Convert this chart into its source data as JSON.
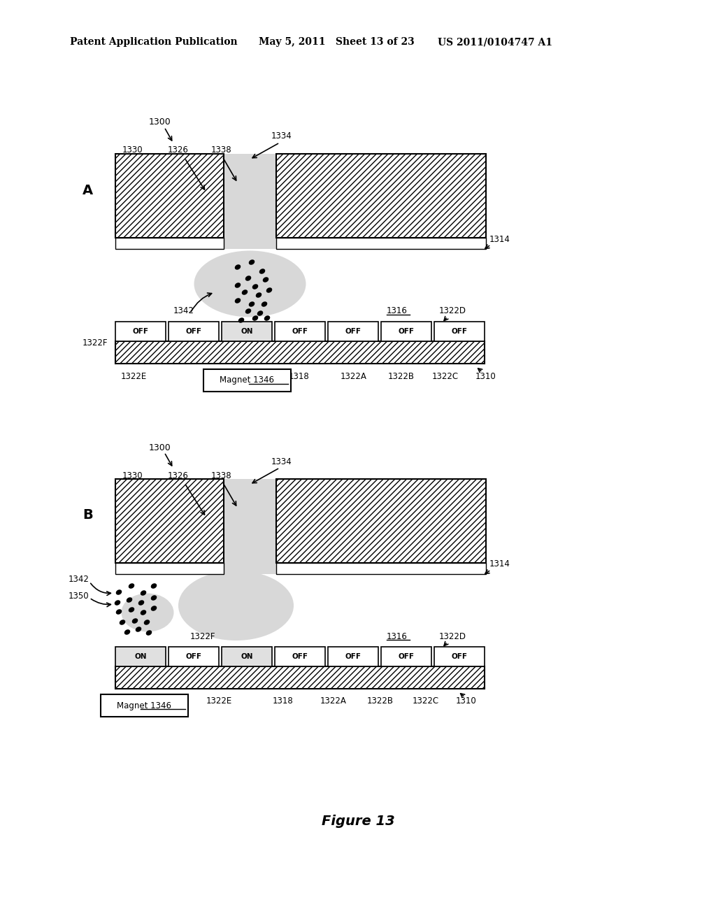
{
  "bg_color": "#ffffff",
  "header_text": "Patent Application Publication",
  "header_date": "May 5, 2011",
  "header_sheet": "Sheet 13 of 23",
  "header_patent": "US 2011/0104747 A1",
  "figure_label": "Figure 13",
  "panel_A_label": "A",
  "panel_B_label": "B",
  "label_1300": "1300",
  "label_1330": "1330",
  "label_1326": "1326",
  "label_1338": "1338",
  "label_1334": "1334",
  "label_1314": "1314",
  "label_1342": "1342",
  "label_1316": "1316",
  "label_1322D": "1322D",
  "label_1322F": "1322F",
  "label_1322E": "1322E",
  "label_1318": "1318",
  "label_1322A": "1322A",
  "label_1322B": "1322B",
  "label_1322C": "1322C",
  "label_1310": "1310",
  "label_magnet": "Magnet 1346",
  "label_1350": "1350",
  "electrodes_A": [
    "OFF",
    "OFF",
    "ON",
    "OFF",
    "OFF",
    "OFF",
    "OFF"
  ],
  "electrodes_B": [
    "ON",
    "OFF",
    "ON",
    "OFF",
    "OFF",
    "OFF",
    "OFF"
  ],
  "droplet_color": "#d8d8d8",
  "hatch_color": "#000000",
  "line_color": "#000000"
}
